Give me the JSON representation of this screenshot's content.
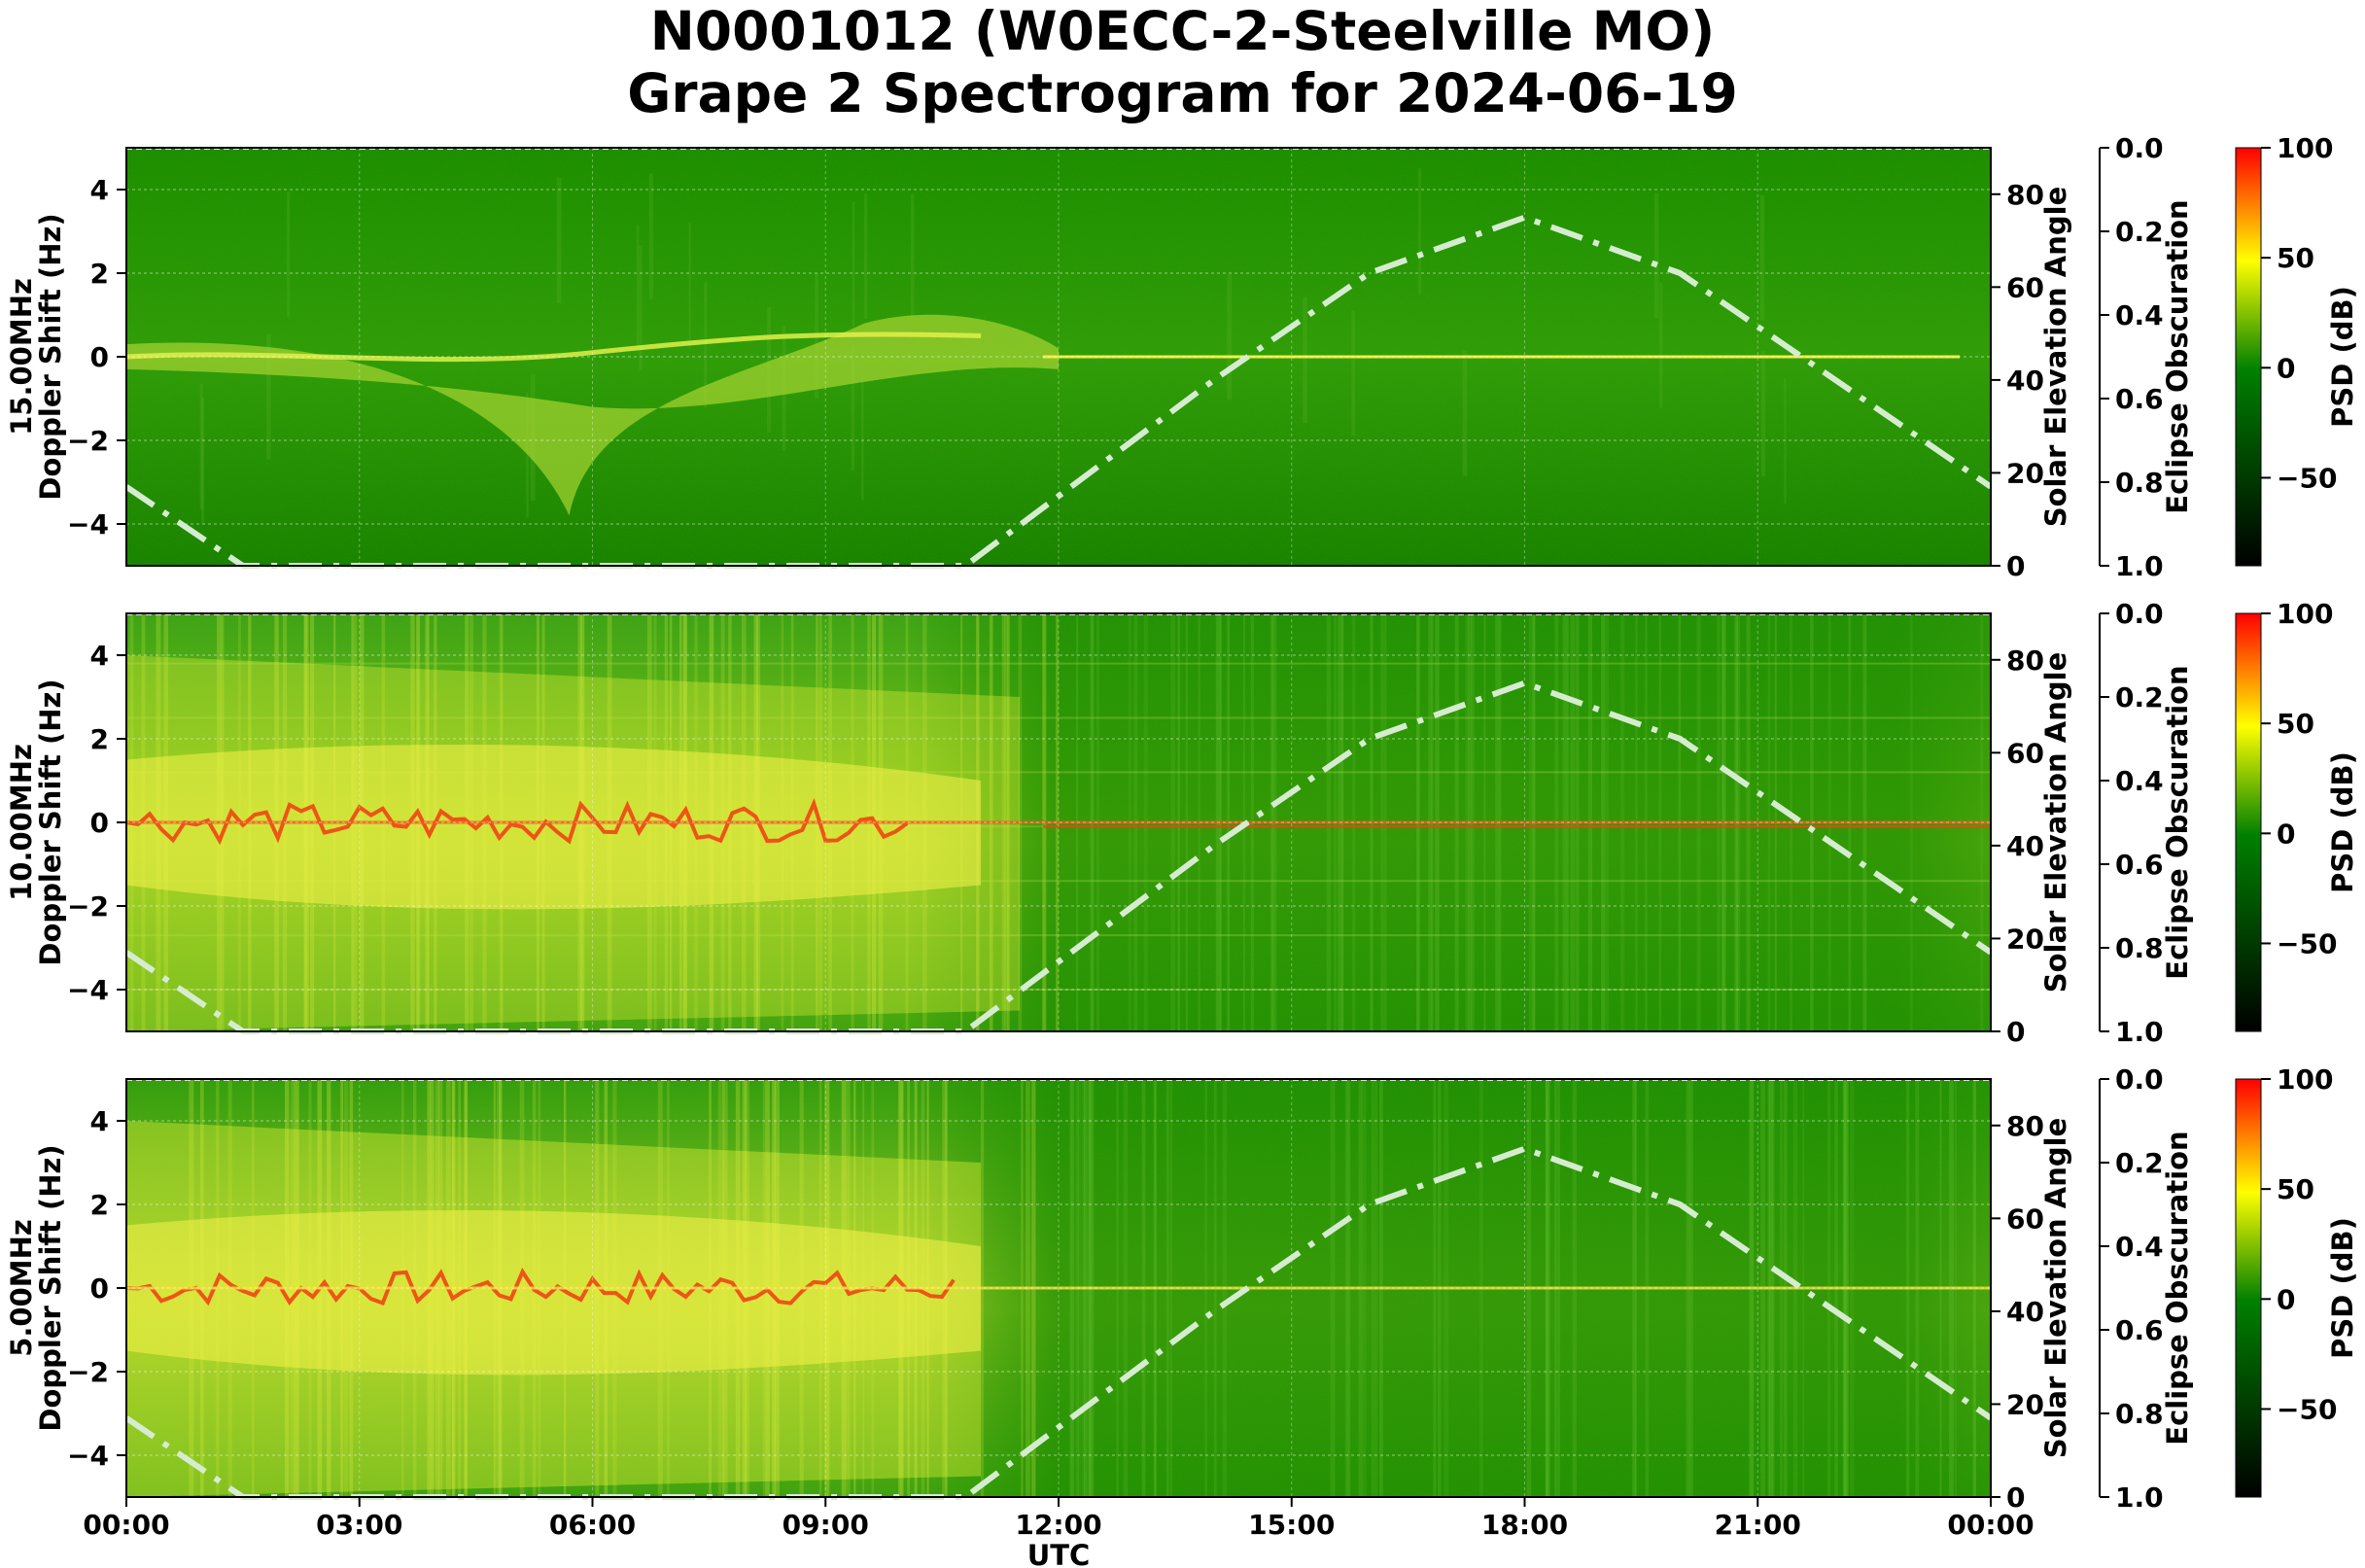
{
  "title_line1": "N0001012 (W0ECC-2-Steelville MO)",
  "title_line2": "Grape 2 Spectrogram for 2024-06-19",
  "chart_data": {
    "type": "heatmap",
    "xlabel": "UTC",
    "x_ticks": [
      "00:00",
      "03:00",
      "06:00",
      "09:00",
      "12:00",
      "15:00",
      "18:00",
      "21:00",
      "00:00"
    ],
    "x_range_hours": [
      0,
      24
    ],
    "colormap": {
      "low": "#000000",
      "mid": "#008000",
      "mid2": "#ffff00",
      "high": "#ff0000"
    },
    "panels": [
      {
        "frequency": "15.00MHz",
        "ylabel": "Doppler Shift (Hz)",
        "ylim": [
          -5,
          5
        ],
        "y_ticks": [
          -4,
          -2,
          0,
          2,
          4
        ],
        "right_axis": {
          "label": "Solar Elevation Angle",
          "ylim": [
            0,
            90
          ],
          "ticks": [
            0,
            20,
            40,
            60,
            80
          ]
        },
        "eclipse_axis": {
          "label": "Eclipse Obscuration",
          "ticks": [
            "0.0",
            "0.2",
            "0.4",
            "0.6",
            "0.8",
            "1.0"
          ]
        },
        "colorbar": {
          "label": "PSD (dB)",
          "ticks": [
            100,
            50,
            0,
            -50
          ],
          "range": [
            -90,
            100
          ]
        },
        "solar_elevation": {
          "x": [
            0,
            1.5,
            10.8,
            12,
            14,
            16,
            18,
            20,
            22,
            24
          ],
          "y": [
            17,
            0,
            0,
            15,
            40,
            63,
            75,
            63,
            40,
            17
          ]
        },
        "signal_intensity": "weak"
      },
      {
        "frequency": "10.00MHz",
        "ylabel": "Doppler Shift (Hz)",
        "ylim": [
          -5,
          5
        ],
        "y_ticks": [
          -4,
          -2,
          0,
          2,
          4
        ],
        "right_axis": {
          "label": "Solar Elevation Angle",
          "ylim": [
            0,
            90
          ],
          "ticks": [
            0,
            20,
            40,
            60,
            80
          ]
        },
        "eclipse_axis": {
          "label": "Eclipse Obscuration",
          "ticks": [
            "0.0",
            "0.2",
            "0.4",
            "0.6",
            "0.8",
            "1.0"
          ]
        },
        "colorbar": {
          "label": "PSD (dB)",
          "ticks": [
            100,
            50,
            0,
            -50
          ],
          "range": [
            -90,
            100
          ]
        },
        "solar_elevation": {
          "x": [
            0,
            1.5,
            10.8,
            12,
            14,
            16,
            18,
            20,
            22,
            24
          ],
          "y": [
            17,
            0,
            0,
            15,
            40,
            63,
            75,
            63,
            40,
            17
          ]
        },
        "signal_intensity": "strong"
      },
      {
        "frequency": "5.00MHz",
        "ylabel": "Doppler Shift (Hz)",
        "ylim": [
          -5,
          5
        ],
        "y_ticks": [
          -4,
          -2,
          0,
          2,
          4
        ],
        "right_axis": {
          "label": "Solar Elevation Angle",
          "ylim": [
            0,
            90
          ],
          "ticks": [
            0,
            20,
            40,
            60,
            80
          ]
        },
        "eclipse_axis": {
          "label": "Eclipse Obscuration",
          "ticks": [
            "0.0",
            "0.2",
            "0.4",
            "0.6",
            "0.8",
            "1.0"
          ]
        },
        "colorbar": {
          "label": "PSD (dB)",
          "ticks": [
            100,
            50,
            0,
            -50
          ],
          "range": [
            -90,
            100
          ]
        },
        "solar_elevation": {
          "x": [
            0,
            1.5,
            10.8,
            12,
            14,
            16,
            18,
            20,
            22,
            24
          ],
          "y": [
            17,
            0,
            0,
            15,
            40,
            63,
            75,
            63,
            40,
            17
          ]
        },
        "signal_intensity": "night-strong"
      }
    ]
  }
}
